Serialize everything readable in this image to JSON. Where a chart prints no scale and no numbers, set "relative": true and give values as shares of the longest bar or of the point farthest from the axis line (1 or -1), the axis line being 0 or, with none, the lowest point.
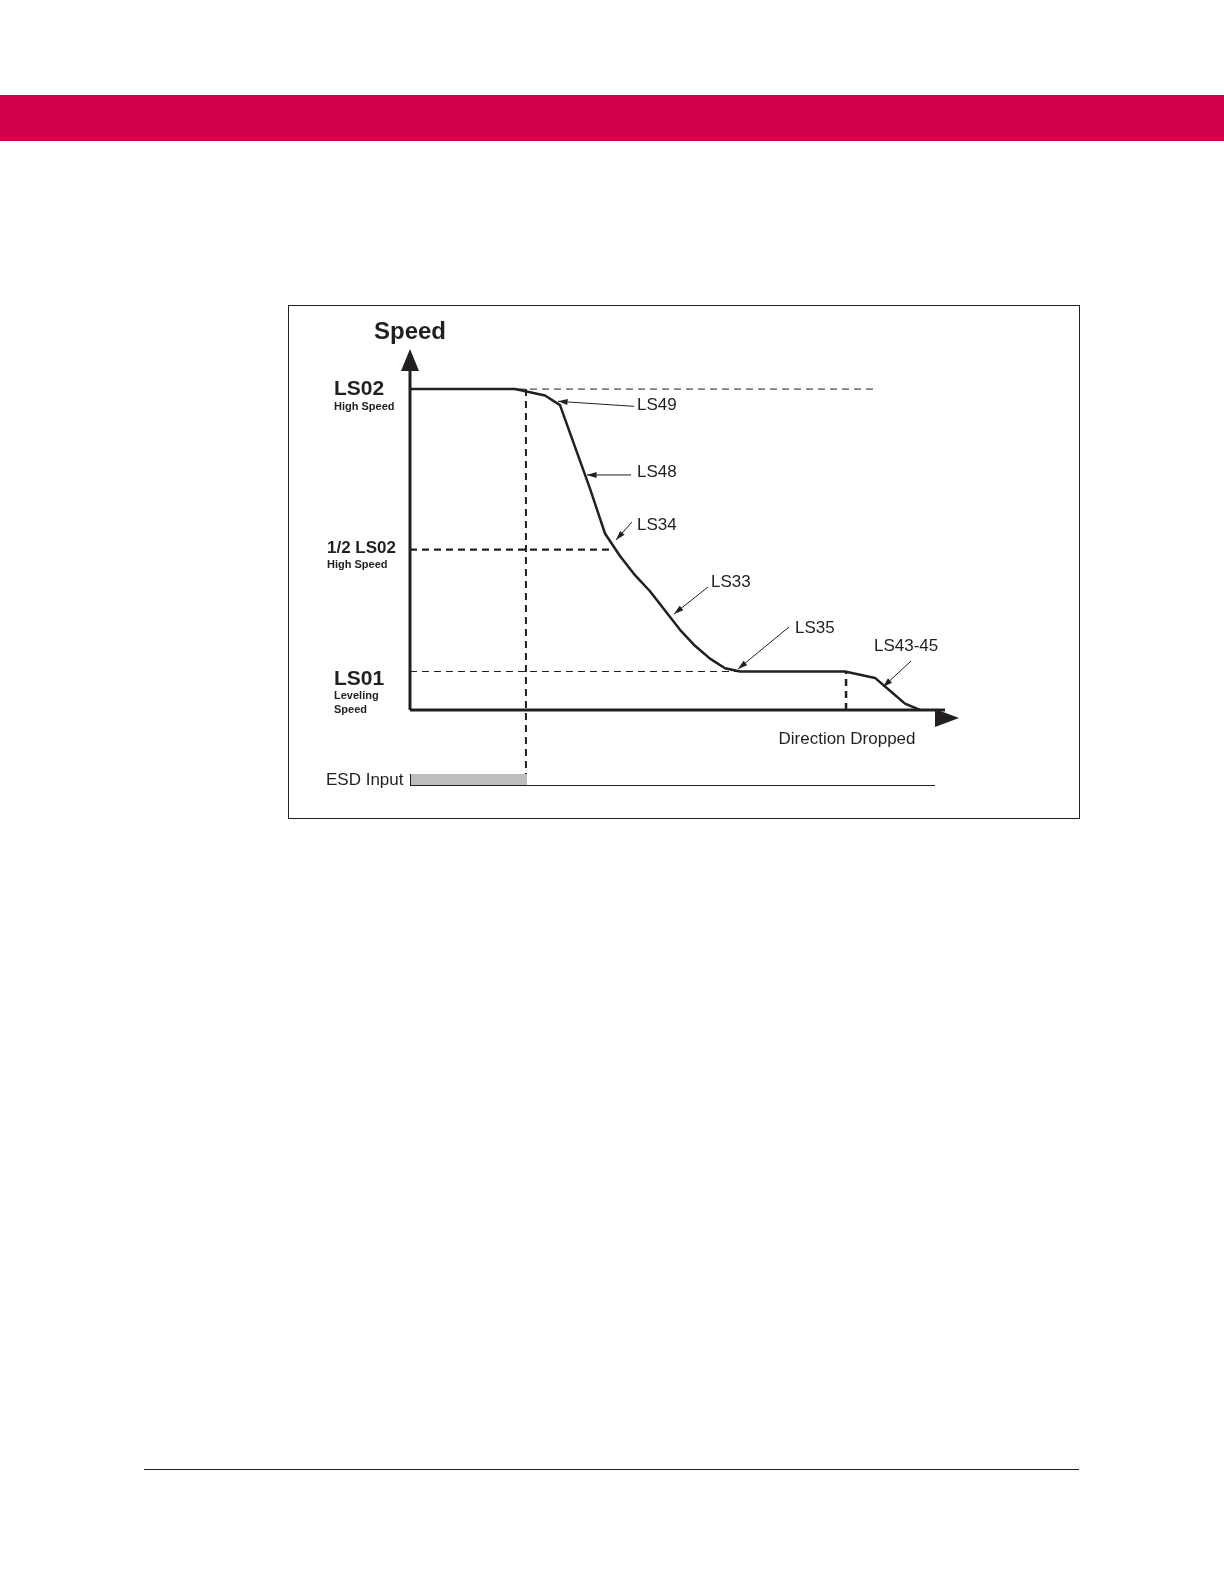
{
  "chart_data": {
    "type": "line",
    "title": "Speed",
    "xlabel": "Direction Dropped",
    "relative": true,
    "categories": [
      null,
      null,
      null,
      null,
      null,
      null,
      null,
      null,
      null,
      null,
      null,
      null,
      null,
      null,
      null,
      null,
      null,
      null,
      null,
      null,
      null,
      null,
      null,
      null,
      null,
      null,
      null,
      null,
      null,
      null,
      null,
      null,
      null,
      null,
      null,
      null,
      null,
      null
    ],
    "series": [
      {
        "color": "#231f20",
        "values": [
          1,
          1,
          1,
          1,
          1,
          1,
          1,
          1,
          0.99,
          0.98,
          0.95,
          0.82,
          0.69,
          0.55,
          0.48,
          0.42,
          0.37,
          0.31,
          0.25,
          0.2,
          0.16,
          0.13,
          0.12,
          0.12,
          0.12,
          0.12,
          0.12,
          0.12,
          0.12,
          0.12,
          0.11,
          0.1,
          0.06,
          0.02,
          0,
          null,
          null,
          null
        ]
      }
    ],
    "tick_labels": false,
    "legend": false,
    "marker": "none",
    "line_style": "solid",
    "annotations": [
      "LS02",
      "High Speed",
      "1/2 LS02",
      "High Speed",
      "LS01",
      "Leveling Speed",
      "LS49",
      "LS48",
      "LS34",
      "LS33",
      "LS35",
      "LS43-45",
      "ESD Input"
    ],
    "ref_lines": [
      {
        "axis": "y",
        "value": 1,
        "line_style": "dashed"
      },
      {
        "axis": "y",
        "value": 0.5,
        "line_style": "dashed"
      },
      {
        "axis": "y",
        "value": 0.12,
        "line_style": "dashed"
      }
    ]
  }
}
